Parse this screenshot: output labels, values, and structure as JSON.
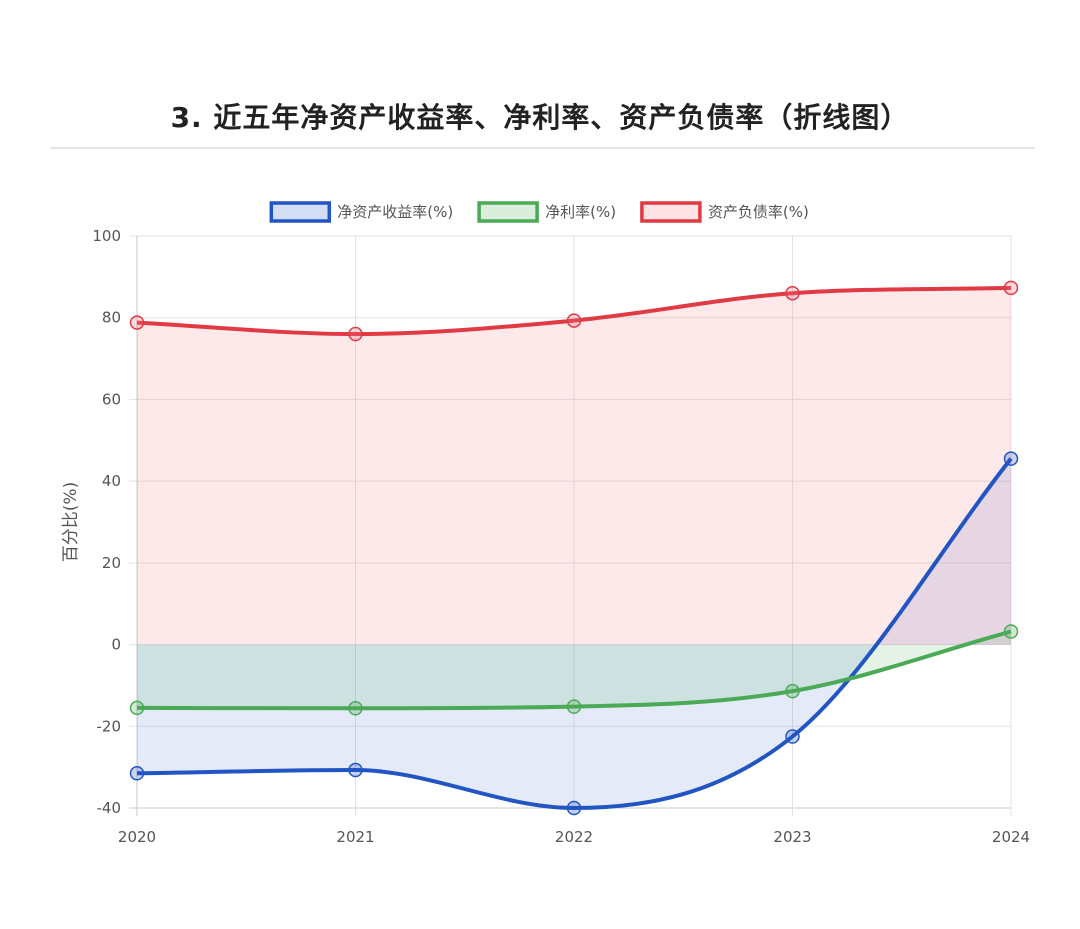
{
  "header": {
    "title": "3. 近五年净资产收益率、净利率、资产负债率（折线图）"
  },
  "chart_data": {
    "type": "line",
    "title": "3. 近五年净资产收益率、净利率、资产负债率（折线图）",
    "xlabel": "",
    "ylabel": "百分比(%)",
    "ylim": [
      -40,
      100
    ],
    "yticks": [
      -40,
      -20,
      0,
      20,
      40,
      60,
      80,
      100
    ],
    "categories": [
      "2020",
      "2021",
      "2022",
      "2023",
      "2024"
    ],
    "grid": true,
    "legend_position": "top-center",
    "series": [
      {
        "name": "净资产收益率(%)",
        "values": [
          -31.5,
          -30.7,
          -40.0,
          -22.5,
          45.5
        ],
        "color": "#2255c4",
        "fill": "rgba(34,85,196,0.12)"
      },
      {
        "name": "净利率(%)",
        "values": [
          -15.5,
          -15.6,
          -15.2,
          -11.4,
          3.2
        ],
        "color": "#4aaa55",
        "fill": "rgba(74,170,85,0.14)"
      },
      {
        "name": "资产负债率(%)",
        "values": [
          78.8,
          76.0,
          79.3,
          86.0,
          87.3
        ],
        "color": "#e03a45",
        "fill": "rgba(240,110,125,0.16)"
      }
    ]
  }
}
